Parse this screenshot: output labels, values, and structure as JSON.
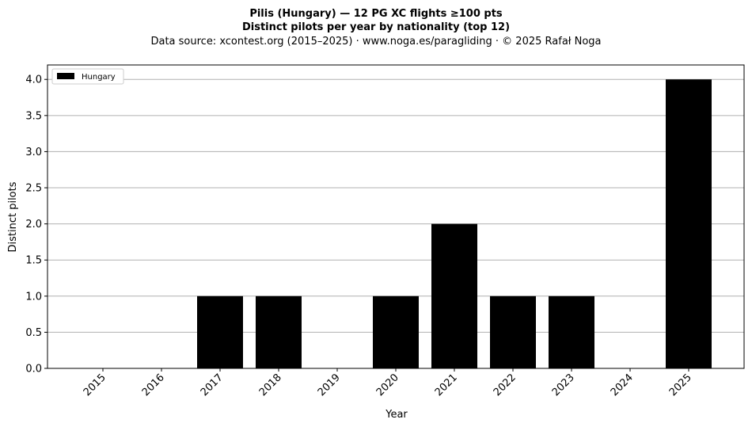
{
  "chart_data": {
    "type": "bar",
    "title_line1": "Pilis (Hungary)  —  12 PG XC flights ≥100 pts",
    "title_line2": "Distinct pilots per year by nationality (top 12)",
    "subtitle": "Data source: xcontest.org (2015–2025)  ·  www.noga.es/paragliding  ·  © 2025 Rafał Noga",
    "xlabel": "Year",
    "ylabel": "Distinct pilots",
    "categories": [
      "2015",
      "2016",
      "2017",
      "2018",
      "2019",
      "2020",
      "2021",
      "2022",
      "2023",
      "2024",
      "2025"
    ],
    "series": [
      {
        "name": "Hungary",
        "values": [
          0,
          0,
          1,
          1,
          0,
          1,
          2,
          1,
          1,
          0,
          4
        ],
        "color": "#000000"
      }
    ],
    "ylim": [
      0,
      4.2
    ],
    "yticks": [
      "0.0",
      "0.5",
      "1.0",
      "1.5",
      "2.0",
      "2.5",
      "3.0",
      "3.5",
      "4.0"
    ],
    "grid": "y",
    "legend_position": "top-left",
    "gridline_color": "#b0b0b0"
  }
}
